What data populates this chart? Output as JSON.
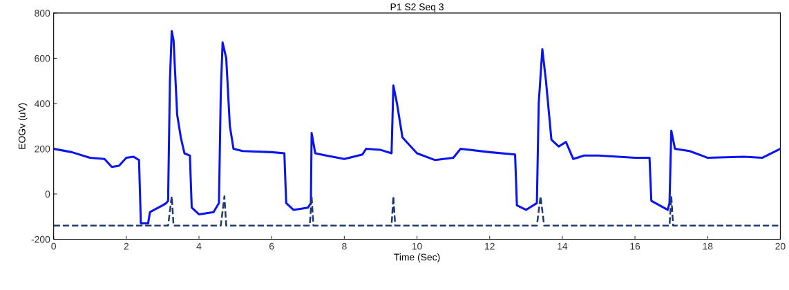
{
  "chart_data": {
    "type": "line",
    "title": "P1 S2 Seq 3",
    "xlabel": "Time (Sec)",
    "ylabel": "EOGv (uV)",
    "xlim": [
      0,
      20
    ],
    "ylim": [
      -200,
      800
    ],
    "xticks": [
      0,
      2,
      4,
      6,
      8,
      10,
      12,
      14,
      16,
      18,
      20
    ],
    "yticks": [
      -200,
      0,
      200,
      400,
      600,
      800
    ],
    "grid": false,
    "series": [
      {
        "color": "#0a14f0",
        "line_style": "solid",
        "x": [
          0,
          0.5,
          1.0,
          1.4,
          1.6,
          1.8,
          2.0,
          2.2,
          2.35,
          2.4,
          2.6,
          2.65,
          3.0,
          3.1,
          3.15,
          3.2,
          3.25,
          3.3,
          3.4,
          3.5,
          3.6,
          3.75,
          3.8,
          4.0,
          4.4,
          4.55,
          4.6,
          4.65,
          4.75,
          4.85,
          4.95,
          5.2,
          6.0,
          6.35,
          6.4,
          6.6,
          7.0,
          7.08,
          7.1,
          7.2,
          7.5,
          8.0,
          8.5,
          8.6,
          9.0,
          9.3,
          9.35,
          9.45,
          9.6,
          10.0,
          10.5,
          11.0,
          11.2,
          12.0,
          12.7,
          12.75,
          13.0,
          13.3,
          13.35,
          13.45,
          13.55,
          13.7,
          13.9,
          14.1,
          14.3,
          14.6,
          15.0,
          16.0,
          16.4,
          16.45,
          16.9,
          16.95,
          17.0,
          17.1,
          17.5,
          18.0,
          19.0,
          19.5,
          20.0
        ],
        "values": [
          200,
          185,
          160,
          155,
          120,
          125,
          160,
          165,
          150,
          -130,
          -130,
          -80,
          -50,
          -40,
          -30,
          500,
          720,
          680,
          350,
          250,
          180,
          170,
          -60,
          -90,
          -80,
          -40,
          450,
          670,
          600,
          300,
          200,
          190,
          185,
          180,
          -40,
          -70,
          -60,
          -40,
          270,
          180,
          170,
          155,
          175,
          200,
          195,
          180,
          480,
          400,
          250,
          180,
          150,
          160,
          200,
          185,
          175,
          -50,
          -70,
          -40,
          400,
          640,
          500,
          240,
          210,
          230,
          155,
          170,
          170,
          160,
          160,
          -30,
          -70,
          -40,
          280,
          200,
          190,
          160,
          165,
          160,
          200
        ]
      },
      {
        "color": "#1f3a6e",
        "line_style": "dashed",
        "x": [
          0,
          3.15,
          3.25,
          3.3,
          4.6,
          4.7,
          4.75,
          7.05,
          7.1,
          7.15,
          9.3,
          9.35,
          9.4,
          13.3,
          13.4,
          13.5,
          16.95,
          17.0,
          17.05,
          20
        ],
        "values": [
          -140,
          -140,
          -10,
          -140,
          -140,
          -10,
          -140,
          -140,
          -10,
          -140,
          -140,
          -10,
          -140,
          -140,
          -10,
          -140,
          -140,
          -10,
          -140,
          -140
        ]
      }
    ]
  }
}
